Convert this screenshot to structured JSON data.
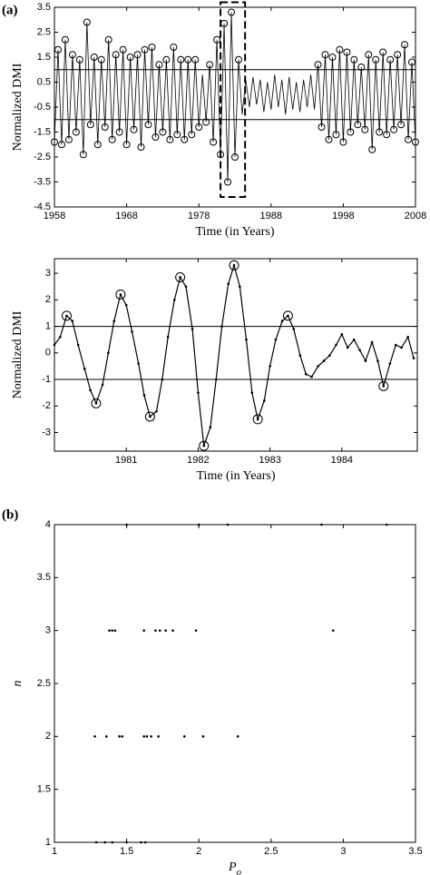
{
  "chart_data": [
    {
      "type": "line",
      "panel": "(a)",
      "ylabel": "Normalized DMI",
      "xlabel": "Time (in Years)",
      "xlim": [
        1958,
        2008
      ],
      "xticks": [
        1958,
        1968,
        1978,
        1988,
        1998,
        2008
      ],
      "ylim": [
        -4.5,
        3.5
      ],
      "yticks": [
        3.5,
        2.5,
        1.5,
        0.5,
        -0.5,
        -1.5,
        -2.5,
        -3.5,
        -4.5
      ],
      "hlines": [
        1,
        -1
      ],
      "highlight_x": [
        1981,
        1984.4
      ],
      "highlight_y": [
        -4.1,
        3.7
      ],
      "color": "#000000",
      "x": [
        1958,
        1958.5,
        1959,
        1959.5,
        1960,
        1960.5,
        1961,
        1961.5,
        1962,
        1962.5,
        1963,
        1963.5,
        1964,
        1964.5,
        1965,
        1965.5,
        1966,
        1966.5,
        1967,
        1967.5,
        1968,
        1968.5,
        1969,
        1969.5,
        1970,
        1970.5,
        1971,
        1971.5,
        1972,
        1972.5,
        1973,
        1973.5,
        1974,
        1974.5,
        1975,
        1975.5,
        1976,
        1976.5,
        1977,
        1977.5,
        1978,
        1978.5,
        1979,
        1979.5,
        1980,
        1980.5,
        1981,
        1981.5,
        1982,
        1982.5,
        1983,
        1983.5,
        1984,
        1984.5,
        1985,
        1985.5,
        1986,
        1986.5,
        1987,
        1987.5,
        1988,
        1988.5,
        1989,
        1989.5,
        1990,
        1990.5,
        1991,
        1991.5,
        1992,
        1992.5,
        1993,
        1993.5,
        1994,
        1994.5,
        1995,
        1995.5,
        1996,
        1996.5,
        1997,
        1997.5,
        1998,
        1998.5,
        1999,
        1999.5,
        2000,
        2000.5,
        2001,
        2001.5,
        2002,
        2002.5,
        2003,
        2003.5,
        2004,
        2004.5,
        2005,
        2005.5,
        2006,
        2006.5,
        2007,
        2007.5,
        2008
      ],
      "values": [
        -1.9,
        1.8,
        -2.0,
        2.2,
        -1.8,
        1.6,
        -1.5,
        1.4,
        -2.4,
        2.9,
        -1.2,
        1.5,
        -2.0,
        1.4,
        -1.3,
        2.2,
        -1.8,
        1.6,
        -1.5,
        1.8,
        -2.0,
        1.5,
        -1.4,
        1.6,
        -2.1,
        1.8,
        -1.2,
        1.9,
        -1.7,
        1.2,
        -1.5,
        1.4,
        -1.8,
        1.9,
        -1.6,
        1.4,
        -1.8,
        1.4,
        -1.6,
        1.4,
        -1.3,
        0.8,
        -1.1,
        1.2,
        -1.9,
        2.2,
        -2.4,
        2.85,
        -3.5,
        3.3,
        -2.5,
        1.4,
        -0.8,
        0.6,
        -0.5,
        0.7,
        -0.4,
        0.6,
        -0.7,
        0.5,
        -0.6,
        0.8,
        -0.5,
        0.6,
        -0.8,
        0.7,
        -0.6,
        0.5,
        -0.7,
        0.6,
        -0.5,
        0.8,
        -0.6,
        1.2,
        -1.3,
        1.6,
        -1.8,
        1.5,
        -1.6,
        1.8,
        -1.9,
        1.7,
        -1.5,
        1.4,
        -1.2,
        1.1,
        -1.4,
        1.6,
        -2.2,
        1.4,
        -1.5,
        1.7,
        -1.6,
        1.4,
        -1.4,
        1.6,
        -1.2,
        2.0,
        -1.8,
        1.3,
        -1.9
      ]
    },
    {
      "type": "line",
      "ylabel": "Normalized DMI",
      "xlabel": "Time (in Years)",
      "xlim": [
        1980,
        1985.05
      ],
      "xticks": [
        1981,
        1982,
        1983,
        1984
      ],
      "ylim": [
        -3.7,
        3.55
      ],
      "yticks": [
        3,
        2,
        1,
        0,
        -1,
        -2,
        -3
      ],
      "hlines": [
        1,
        -1
      ],
      "color": "#000000",
      "x": [
        1980,
        1980.08,
        1980.17,
        1980.25,
        1980.33,
        1980.42,
        1980.5,
        1980.58,
        1980.67,
        1980.75,
        1980.83,
        1980.92,
        1981,
        1981.08,
        1981.17,
        1981.25,
        1981.33,
        1981.42,
        1981.5,
        1981.58,
        1981.67,
        1981.75,
        1981.83,
        1981.92,
        1982,
        1982.08,
        1982.17,
        1982.25,
        1982.33,
        1982.42,
        1982.5,
        1982.58,
        1982.67,
        1982.75,
        1982.83,
        1982.92,
        1983,
        1983.08,
        1983.17,
        1983.25,
        1983.33,
        1983.42,
        1983.5,
        1983.58,
        1983.67,
        1983.75,
        1983.83,
        1983.92,
        1984,
        1984.08,
        1984.17,
        1984.25,
        1984.33,
        1984.42,
        1984.5,
        1984.58,
        1984.67,
        1984.75,
        1984.83,
        1984.92,
        1985
      ],
      "values": [
        0.3,
        0.6,
        1.4,
        1.2,
        0.3,
        -0.6,
        -1.4,
        -1.9,
        -1.2,
        0.0,
        1.2,
        2.2,
        1.8,
        0.8,
        -0.4,
        -1.6,
        -2.4,
        -2.2,
        -1.0,
        0.6,
        2.0,
        2.85,
        2.5,
        0.9,
        -1.5,
        -3.5,
        -2.8,
        -1.0,
        1.0,
        2.6,
        3.3,
        2.5,
        0.5,
        -1.5,
        -2.5,
        -1.8,
        -0.5,
        0.5,
        1.2,
        1.4,
        0.9,
        -0.1,
        -0.8,
        -0.9,
        -0.5,
        -0.3,
        -0.1,
        0.3,
        0.7,
        0.2,
        0.5,
        0.1,
        -0.3,
        0.4,
        -0.3,
        -1.25,
        -0.4,
        0.3,
        0.2,
        0.6,
        -0.2
      ]
    },
    {
      "type": "scatter",
      "panel": "(b)",
      "ylabel": "n",
      "xlabel": "P",
      "xlabel_sub": "o",
      "xlim": [
        1,
        3.5
      ],
      "xticks": [
        1,
        1.5,
        2,
        2.5,
        3,
        3.5
      ],
      "ylim": [
        1,
        4
      ],
      "yticks": [
        1,
        1.5,
        2,
        2.5,
        3,
        3.5,
        4
      ],
      "color": "#000000",
      "x": [
        1.5,
        2.0,
        2.2,
        2.85,
        3.3,
        1.38,
        1.4,
        1.42,
        1.62,
        1.7,
        1.73,
        1.77,
        1.82,
        1.98,
        2.93,
        1.28,
        1.36,
        1.45,
        1.47,
        1.62,
        1.64,
        1.67,
        1.72,
        1.9,
        2.03,
        2.27,
        1.29,
        1.35,
        1.4,
        1.5,
        1.6,
        1.63
      ],
      "values": [
        4,
        4,
        4,
        4,
        4,
        3,
        3,
        3,
        3,
        3,
        3,
        3,
        3,
        3,
        3,
        2,
        2,
        2,
        2,
        2,
        2,
        2,
        2,
        2,
        2,
        2,
        1,
        1,
        1,
        1,
        1,
        1
      ]
    }
  ]
}
